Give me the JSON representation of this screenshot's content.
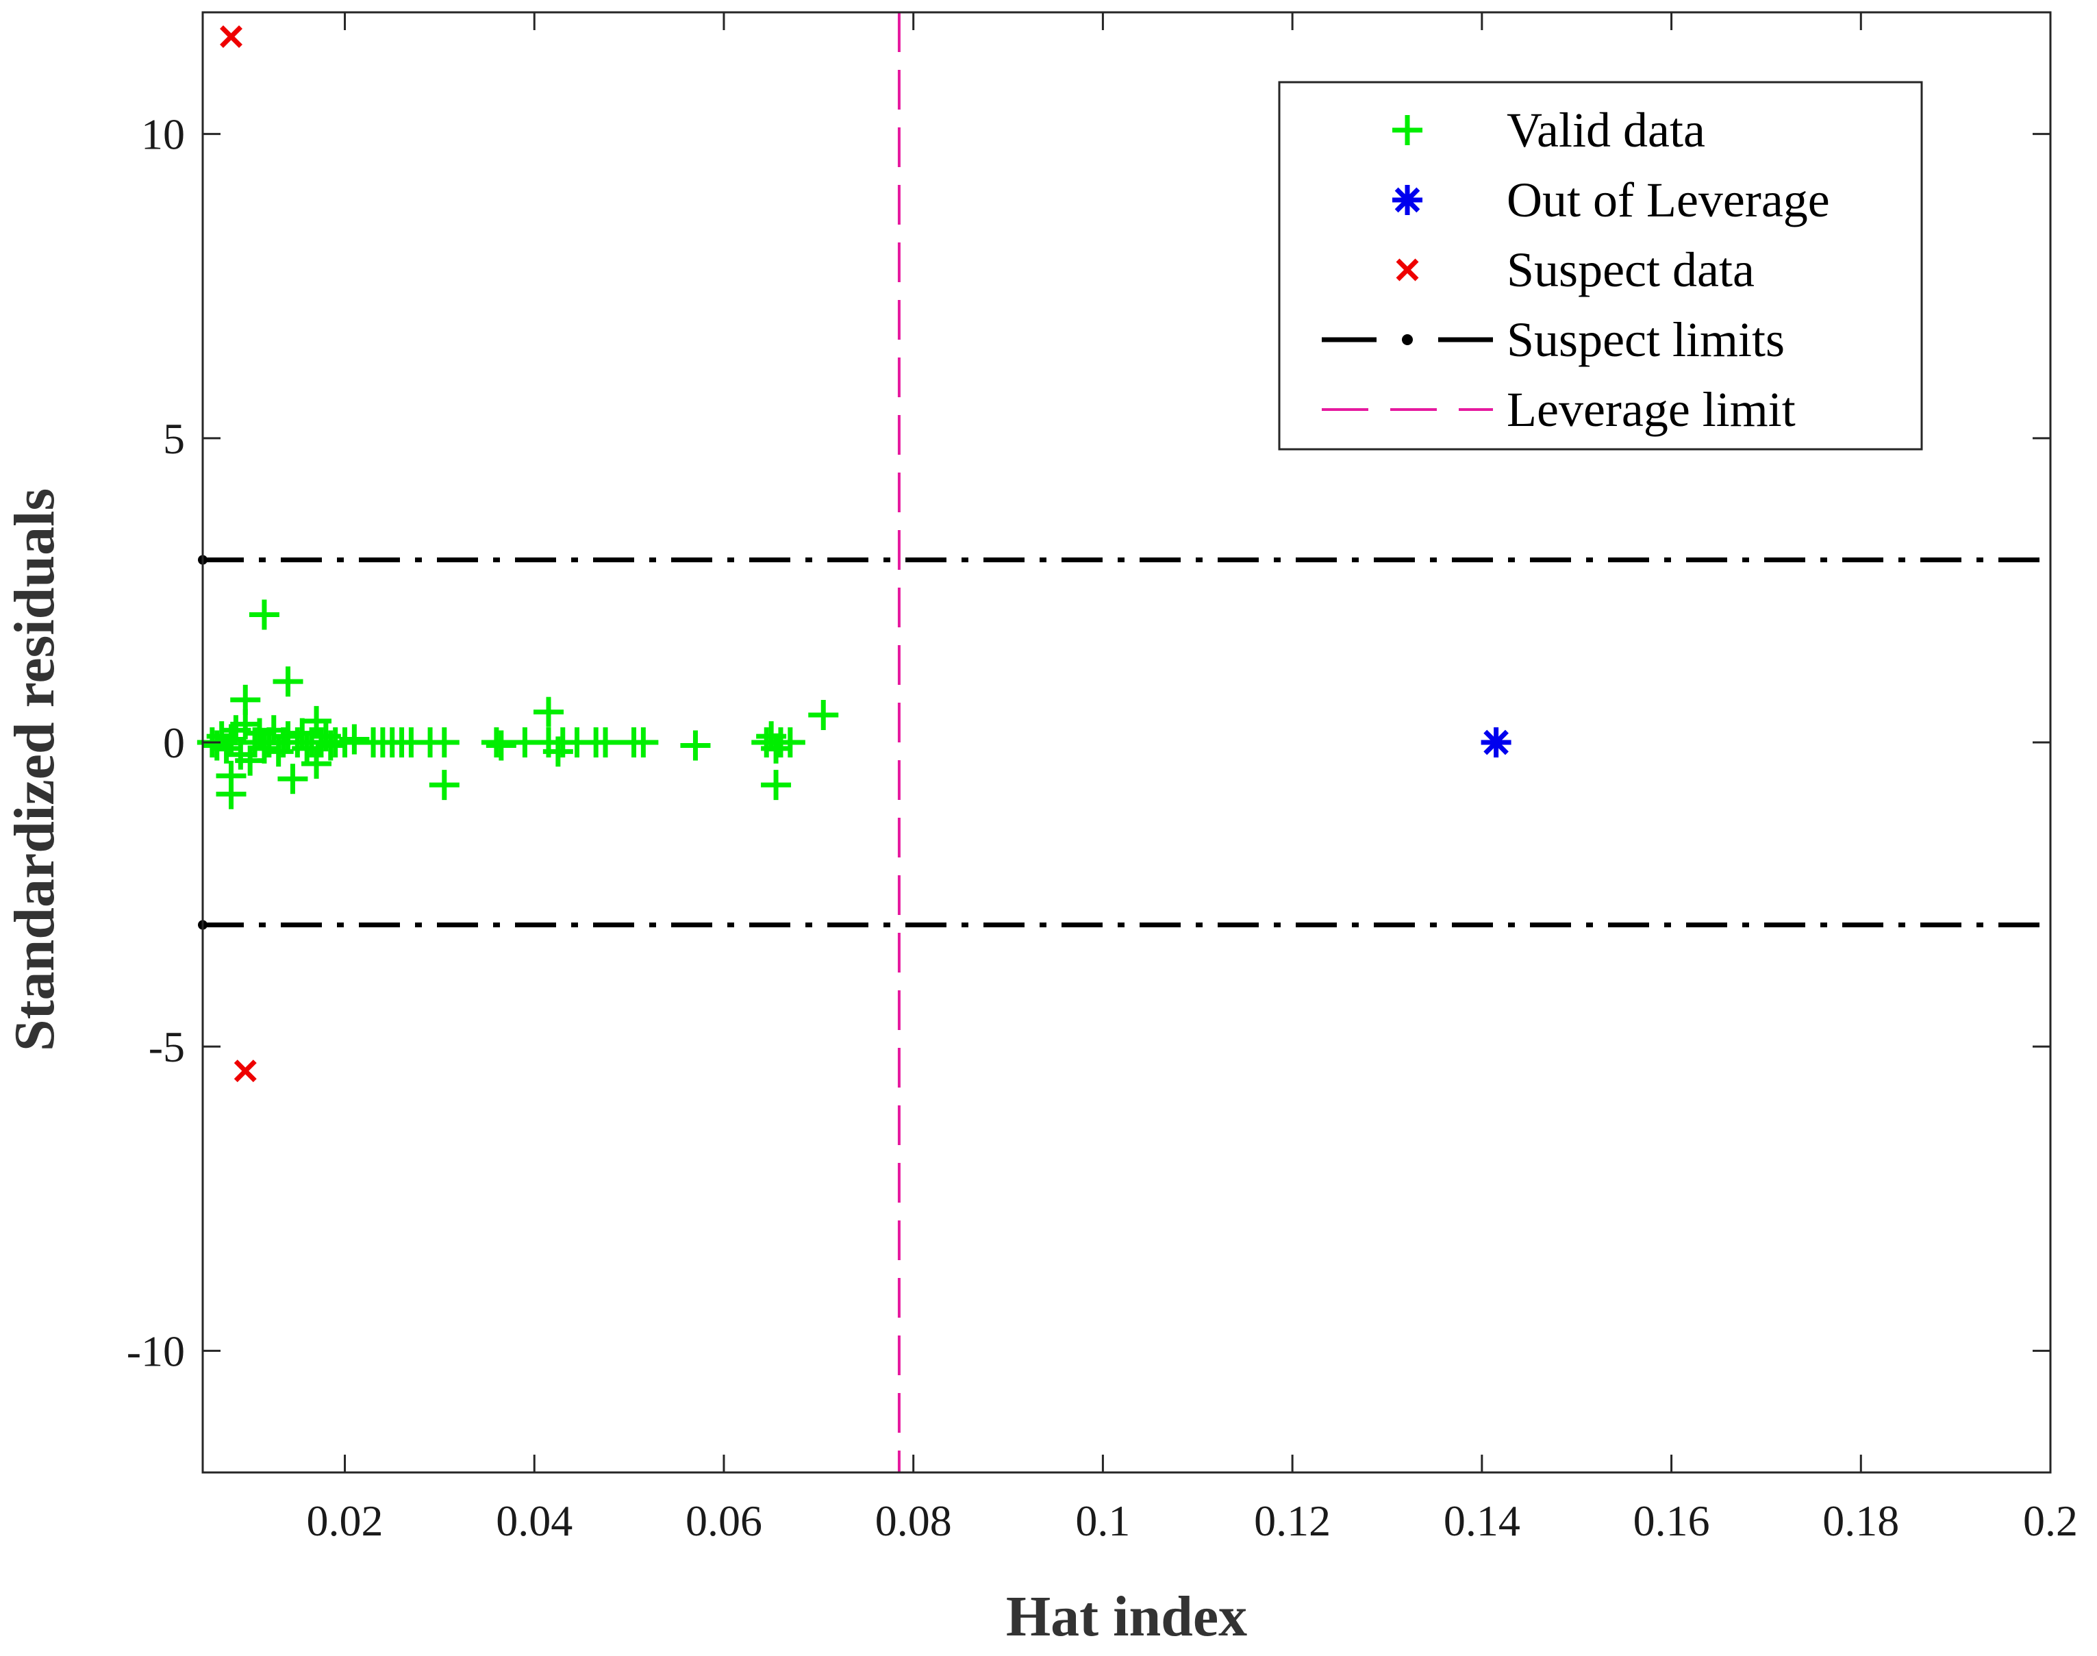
{
  "chart_data": {
    "type": "scatter",
    "title": "",
    "xlabel": "Hat index",
    "ylabel": "Standardized residuals",
    "xlim": [
      0.005,
      0.2
    ],
    "ylim": [
      -12,
      12
    ],
    "xticks": [
      0.02,
      0.04,
      0.06,
      0.08,
      0.1,
      0.12,
      0.14,
      0.16,
      0.18,
      0.2
    ],
    "xtick_labels": [
      "0.02",
      "0.04",
      "0.06",
      "0.08",
      "0.1",
      "0.12",
      "0.14",
      "0.16",
      "0.18",
      "0.2"
    ],
    "yticks": [
      -10,
      -5,
      0,
      5,
      10
    ],
    "ytick_labels": [
      "-10",
      "-5",
      "0",
      "5",
      "10"
    ],
    "grid": false,
    "legend_position": "top-right",
    "colors": {
      "valid": "#00ee00",
      "leverage": "#0000ee",
      "suspect": "#ee0000",
      "suspect_limits": "#000000",
      "leverage_limit": "#e6199f",
      "axes": "#262626"
    },
    "series": [
      {
        "name": "Valid data",
        "marker": "plus",
        "points": [
          [
            0.006,
            0.0
          ],
          [
            0.0065,
            -0.05
          ],
          [
            0.007,
            0.1
          ],
          [
            0.0075,
            -0.1
          ],
          [
            0.008,
            0.05
          ],
          [
            0.0085,
            0.2
          ],
          [
            0.009,
            -0.2
          ],
          [
            0.0095,
            0.3
          ],
          [
            0.0095,
            0.7
          ],
          [
            0.01,
            -0.3
          ],
          [
            0.0105,
            0.0
          ],
          [
            0.011,
            0.15
          ],
          [
            0.0115,
            2.1
          ],
          [
            0.0115,
            -0.1
          ],
          [
            0.012,
            0.0
          ],
          [
            0.0125,
            0.2
          ],
          [
            0.013,
            -0.15
          ],
          [
            0.0135,
            0.0
          ],
          [
            0.014,
            1.0
          ],
          [
            0.014,
            0.1
          ],
          [
            0.0145,
            -0.6
          ],
          [
            0.015,
            0.0
          ],
          [
            0.0155,
            0.15
          ],
          [
            0.016,
            -0.1
          ],
          [
            0.0165,
            0.0
          ],
          [
            0.017,
            0.35
          ],
          [
            0.017,
            -0.35
          ],
          [
            0.0175,
            0.0
          ],
          [
            0.018,
            0.1
          ],
          [
            0.0185,
            -0.05
          ],
          [
            0.019,
            0.0
          ],
          [
            0.02,
            0.0
          ],
          [
            0.021,
            0.05
          ],
          [
            0.023,
            0.0
          ],
          [
            0.024,
            0.0
          ],
          [
            0.025,
            0.0
          ],
          [
            0.026,
            0.0
          ],
          [
            0.027,
            0.0
          ],
          [
            0.029,
            0.0
          ],
          [
            0.0305,
            0.0
          ],
          [
            0.0305,
            -0.7
          ],
          [
            0.036,
            0.0
          ],
          [
            0.0365,
            -0.05
          ],
          [
            0.039,
            0.0
          ],
          [
            0.0415,
            0.5
          ],
          [
            0.0415,
            0.0
          ],
          [
            0.0425,
            -0.15
          ],
          [
            0.043,
            0.0
          ],
          [
            0.0445,
            0.0
          ],
          [
            0.0465,
            0.0
          ],
          [
            0.0475,
            0.0
          ],
          [
            0.0505,
            0.0
          ],
          [
            0.0515,
            0.0
          ],
          [
            0.057,
            -0.05
          ],
          [
            0.0645,
            0.0
          ],
          [
            0.065,
            0.1
          ],
          [
            0.0655,
            -0.1
          ],
          [
            0.0655,
            -0.7
          ],
          [
            0.066,
            0.0
          ],
          [
            0.067,
            0.0
          ],
          [
            0.0705,
            0.45
          ],
          [
            0.008,
            -0.55
          ],
          [
            0.008,
            -0.85
          ]
        ]
      },
      {
        "name": "Out of Leverage",
        "marker": "asterisk",
        "points": [
          [
            0.1415,
            0.0
          ]
        ]
      },
      {
        "name": "Suspect data",
        "marker": "x",
        "points": [
          [
            0.008,
            11.6
          ],
          [
            0.0095,
            -5.4
          ]
        ]
      }
    ],
    "reference_lines": [
      {
        "name": "Suspect limits",
        "orientation": "horizontal",
        "values": [
          3,
          -3
        ],
        "style": "dash-dot"
      },
      {
        "name": "Leverage limit",
        "orientation": "vertical",
        "values": [
          0.0785
        ],
        "style": "dashed"
      }
    ],
    "legend": [
      {
        "label": "Valid data",
        "marker": "plus"
      },
      {
        "label": "Out of Leverage",
        "marker": "asterisk"
      },
      {
        "label": "Suspect data",
        "marker": "x"
      },
      {
        "label": "Suspect limits",
        "marker": "dashdot-line"
      },
      {
        "label": "Leverage limit",
        "marker": "dashed-line"
      }
    ]
  }
}
